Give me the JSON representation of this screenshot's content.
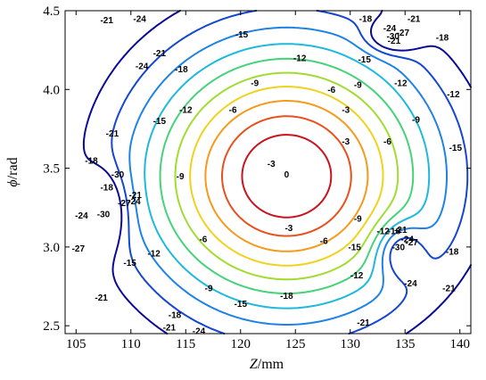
{
  "chart_data": {
    "type": "contour",
    "xlabel_main": "Z",
    "xlabel_unit": "/mm",
    "ylabel_main": "ϕ",
    "ylabel_unit": "/rad",
    "xlim": [
      104,
      141
    ],
    "ylim": [
      2.45,
      4.5
    ],
    "xticks": [
      105,
      110,
      115,
      120,
      125,
      130,
      135,
      140
    ],
    "yticks": [
      2.5,
      3.0,
      3.5,
      4.0,
      4.5
    ],
    "ytick_labels": [
      "2.5",
      "3.0",
      "3.5",
      "4.0",
      "4.5"
    ],
    "levels": [
      {
        "value": -3,
        "color": "#c8141e"
      },
      {
        "value": -6,
        "color": "#e8501e"
      },
      {
        "value": -9,
        "color": "#f59a1c"
      },
      {
        "value": -12,
        "color": "#f0d21e"
      },
      {
        "value": -15,
        "color": "#a0dc32"
      },
      {
        "value": -18,
        "color": "#46d278"
      },
      {
        "value": -21,
        "color": "#1eb9dc"
      },
      {
        "value": -24,
        "color": "#1e82e6"
      },
      {
        "value": -27,
        "color": "#1446d2"
      },
      {
        "value": -30,
        "color": "#0a0a96"
      }
    ],
    "labels": [
      {
        "text": "-3",
        "x": 122.8,
        "y": 3.53
      },
      {
        "text": "-3",
        "x": 129.6,
        "y": 3.87
      },
      {
        "text": "-3",
        "x": 129.6,
        "y": 3.67
      },
      {
        "text": "-3",
        "x": 124.4,
        "y": 3.12
      },
      {
        "text": "0",
        "x": 124.2,
        "y": 3.46
      },
      {
        "text": "-6",
        "x": 119.3,
        "y": 3.87
      },
      {
        "text": "-6",
        "x": 128.3,
        "y": 4.0
      },
      {
        "text": "-6",
        "x": 133.4,
        "y": 3.67
      },
      {
        "text": "-6",
        "x": 116.6,
        "y": 3.05
      },
      {
        "text": "-6",
        "x": 127.6,
        "y": 3.04
      },
      {
        "text": "-9",
        "x": 121.3,
        "y": 4.04
      },
      {
        "text": "-9",
        "x": 130.7,
        "y": 4.03
      },
      {
        "text": "-9",
        "x": 136.0,
        "y": 3.81
      },
      {
        "text": "-9",
        "x": 114.5,
        "y": 3.45
      },
      {
        "text": "-9",
        "x": 130.7,
        "y": 3.18
      },
      {
        "text": "-9",
        "x": 117.1,
        "y": 2.74
      },
      {
        "text": "-12",
        "x": 125.4,
        "y": 4.2
      },
      {
        "text": "-12",
        "x": 134.6,
        "y": 4.04
      },
      {
        "text": "-12",
        "x": 115.0,
        "y": 3.87
      },
      {
        "text": "-12",
        "x": 139.4,
        "y": 3.97
      },
      {
        "text": "-12",
        "x": 133.0,
        "y": 3.1
      },
      {
        "text": "-12",
        "x": 112.1,
        "y": 2.96
      },
      {
        "text": "-12",
        "x": 130.6,
        "y": 2.82
      },
      {
        "text": "-15",
        "x": 120.1,
        "y": 4.35
      },
      {
        "text": "-15",
        "x": 131.3,
        "y": 4.19
      },
      {
        "text": "-15",
        "x": 112.6,
        "y": 3.8
      },
      {
        "text": "-15",
        "x": 139.6,
        "y": 3.63
      },
      {
        "text": "-15",
        "x": 130.4,
        "y": 3.0
      },
      {
        "text": "-15",
        "x": 109.9,
        "y": 2.9
      },
      {
        "text": "-15",
        "x": 120.0,
        "y": 2.64
      },
      {
        "text": "-18",
        "x": 131.4,
        "y": 4.46
      },
      {
        "text": "-18",
        "x": 114.6,
        "y": 4.13
      },
      {
        "text": "-18",
        "x": 138.4,
        "y": 4.33
      },
      {
        "text": "-18",
        "x": 106.4,
        "y": 3.55
      },
      {
        "text": "-18",
        "x": 134.0,
        "y": 3.1
      },
      {
        "text": "-18",
        "x": 139.3,
        "y": 2.97
      },
      {
        "text": "-18",
        "x": 124.2,
        "y": 2.69
      },
      {
        "text": "-18",
        "x": 107.8,
        "y": 3.38
      },
      {
        "text": "-18",
        "x": 114.0,
        "y": 2.57
      },
      {
        "text": "-21",
        "x": 107.8,
        "y": 4.44
      },
      {
        "text": "-21",
        "x": 135.8,
        "y": 4.45
      },
      {
        "text": "-21",
        "x": 134.0,
        "y": 4.31
      },
      {
        "text": "-21",
        "x": 112.6,
        "y": 4.23
      },
      {
        "text": "-21",
        "x": 108.3,
        "y": 3.72
      },
      {
        "text": "-21",
        "x": 110.4,
        "y": 3.33
      },
      {
        "text": "-21",
        "x": 107.3,
        "y": 2.68
      },
      {
        "text": "-21",
        "x": 113.5,
        "y": 2.49
      },
      {
        "text": "-21",
        "x": 139.0,
        "y": 2.74
      },
      {
        "text": "-21",
        "x": 131.2,
        "y": 2.52
      },
      {
        "text": "-21",
        "x": 134.6,
        "y": 3.11
      },
      {
        "text": "-24",
        "x": 110.8,
        "y": 4.51
      },
      {
        "text": "-24",
        "x": 133.6,
        "y": 4.39
      },
      {
        "text": "-24",
        "x": 111.0,
        "y": 4.15
      },
      {
        "text": "-24",
        "x": 105.5,
        "y": 3.2
      },
      {
        "text": "-24",
        "x": 110.3,
        "y": 3.29
      },
      {
        "text": "-24",
        "x": 135.2,
        "y": 3.05
      },
      {
        "text": "-24",
        "x": 135.5,
        "y": 2.77
      },
      {
        "text": "-24",
        "x": 116.2,
        "y": 2.43
      },
      {
        "text": "-27",
        "x": 134.8,
        "y": 4.36
      },
      {
        "text": "-27",
        "x": 109.4,
        "y": 3.28
      },
      {
        "text": "-27",
        "x": 135.6,
        "y": 3.03
      },
      {
        "text": "-27",
        "x": 105.2,
        "y": 2.99
      },
      {
        "text": "-30",
        "x": 133.9,
        "y": 4.34
      },
      {
        "text": "-30",
        "x": 107.5,
        "y": 3.21
      },
      {
        "text": "-30",
        "x": 108.8,
        "y": 3.46
      },
      {
        "text": "-30",
        "x": 134.4,
        "y": 3.0
      }
    ]
  }
}
